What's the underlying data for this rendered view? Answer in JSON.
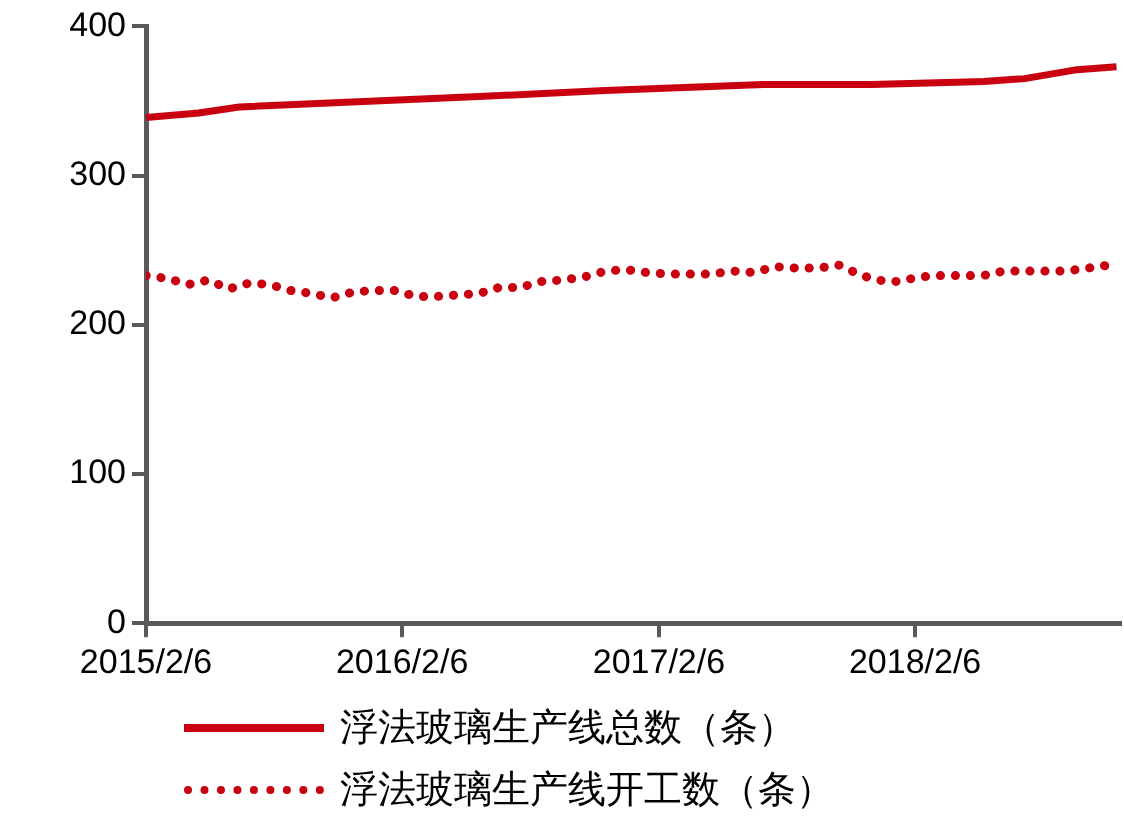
{
  "chart_data": {
    "type": "line",
    "xlim": [
      "2015-02-06",
      "2018-11-25"
    ],
    "xticks": [
      {
        "value": "2015-02-06",
        "label": "2015/2/6"
      },
      {
        "value": "2016-02-06",
        "label": "2016/2/6"
      },
      {
        "value": "2017-02-06",
        "label": "2017/2/6"
      },
      {
        "value": "2018-02-06",
        "label": "2018/2/6"
      }
    ],
    "ylim": [
      0,
      400
    ],
    "yticks": [
      0,
      100,
      200,
      300,
      400
    ],
    "grid": false,
    "legend": "bottom",
    "marker": "none",
    "series": [
      {
        "name": "浮法玻璃生产线总数（条）",
        "color": "#c8000f",
        "line_style": "solid",
        "x": [
          "2015-02-06",
          "2015-04-22",
          "2015-06-19",
          "2016-05-25",
          "2016-11-21",
          "2017-07-05",
          "2017-12-06",
          "2018-05-15",
          "2018-07-12",
          "2018-09-25",
          "2018-11-20"
        ],
        "values": [
          339,
          342,
          346,
          353,
          357,
          361,
          361,
          363,
          365,
          371,
          373
        ]
      },
      {
        "name": "浮法玻璃生产线开工数（条）",
        "color": "#c8000f",
        "line_style": "dotted",
        "x": [
          "2015-02-06",
          "2015-03-09",
          "2015-04-07",
          "2015-05-06",
          "2015-06-04",
          "2015-07-03",
          "2015-08-01",
          "2015-08-31",
          "2015-09-30",
          "2015-10-29",
          "2015-11-28",
          "2015-12-27",
          "2016-01-26",
          "2016-02-26",
          "2016-03-27",
          "2016-04-25",
          "2016-05-26",
          "2016-06-23",
          "2016-07-23",
          "2016-08-22",
          "2016-09-21",
          "2016-10-22",
          "2016-11-22",
          "2016-12-21",
          "2017-01-20",
          "2017-02-20",
          "2017-03-22",
          "2017-04-21",
          "2017-05-23",
          "2017-06-22",
          "2017-07-21",
          "2017-08-21",
          "2017-09-20",
          "2017-10-21",
          "2017-11-17",
          "2017-12-12",
          "2018-01-12",
          "2018-02-12",
          "2018-03-13",
          "2018-04-14",
          "2018-05-14",
          "2018-06-12",
          "2018-07-12",
          "2018-08-11",
          "2018-09-09",
          "2018-10-10",
          "2018-11-09"
        ],
        "values": [
          233,
          231,
          227,
          230,
          224,
          228,
          227,
          223,
          221,
          218,
          222,
          223,
          223,
          219,
          219,
          220,
          221,
          225,
          225,
          229,
          230,
          232,
          236,
          237,
          235,
          234,
          234,
          234,
          236,
          235,
          239,
          238,
          238,
          240,
          234,
          230,
          229,
          232,
          233,
          233,
          233,
          236,
          236,
          236,
          236,
          238,
          240
        ]
      }
    ]
  }
}
